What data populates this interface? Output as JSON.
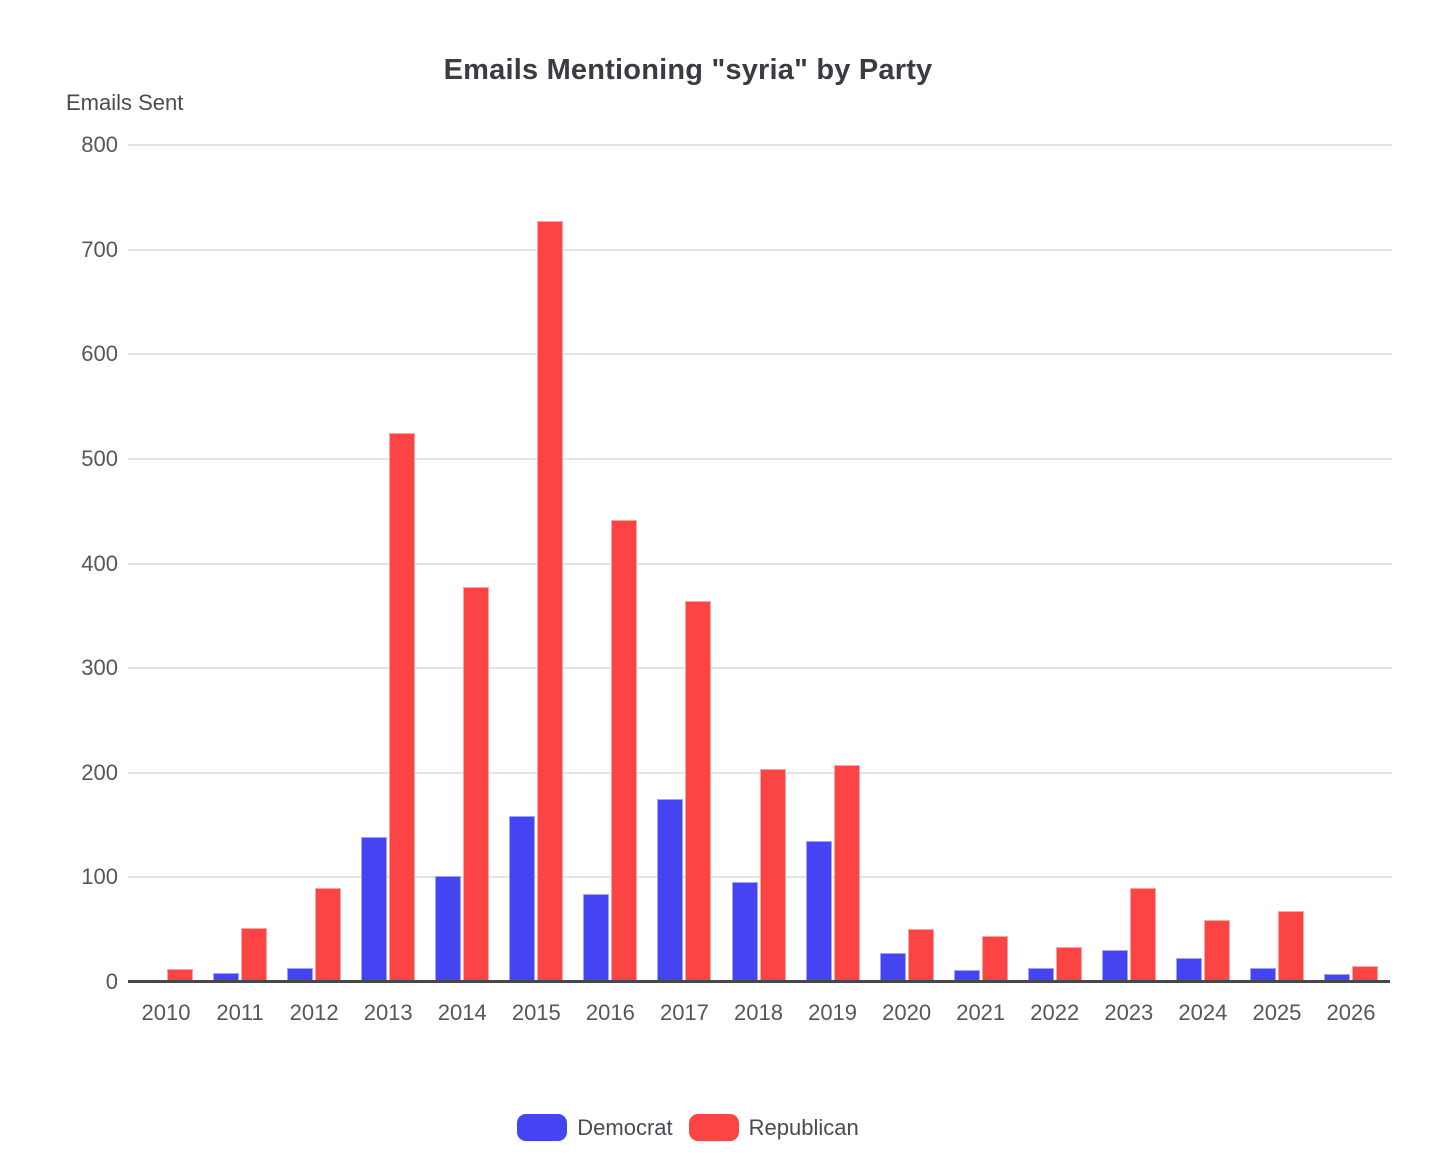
{
  "chart": {
    "title": "Emails Mentioning \"syria\" by Party",
    "y_axis_title": "Emails Sent"
  },
  "chart_data": {
    "type": "bar",
    "title": "Emails Mentioning \"syria\" by Party",
    "xlabel": "",
    "ylabel": "Emails Sent",
    "categories": [
      "2010",
      "2011",
      "2012",
      "2013",
      "2014",
      "2015",
      "2016",
      "2017",
      "2018",
      "2019",
      "2020",
      "2021",
      "2022",
      "2023",
      "2024",
      "2025",
      "2026"
    ],
    "series": [
      {
        "name": "Democrat",
        "color": "#4444f2",
        "values": [
          2,
          9,
          13,
          139,
          101,
          159,
          84,
          175,
          96,
          135,
          28,
          11,
          13,
          31,
          23,
          13,
          8
        ]
      },
      {
        "name": "Republican",
        "color": "#fb4545",
        "values": [
          12,
          52,
          90,
          525,
          378,
          727,
          442,
          364,
          204,
          207,
          51,
          44,
          33,
          90,
          59,
          68,
          15
        ]
      }
    ],
    "ylim": [
      0,
      800
    ],
    "yticks": [
      0,
      100,
      200,
      300,
      400,
      500,
      600,
      700,
      800
    ],
    "grid": true,
    "legend_position": "bottom"
  },
  "legend": {
    "items": [
      {
        "label": "Democrat",
        "color": "#4444f2"
      },
      {
        "label": "Republican",
        "color": "#fb4545"
      }
    ]
  },
  "colors": {
    "democrat": "#4444f2",
    "republican": "#fb4545",
    "grid": "#e2e4e9",
    "axis_line": "#47474c",
    "tick_text": "#56565b",
    "title_text": "#3b3b42"
  }
}
